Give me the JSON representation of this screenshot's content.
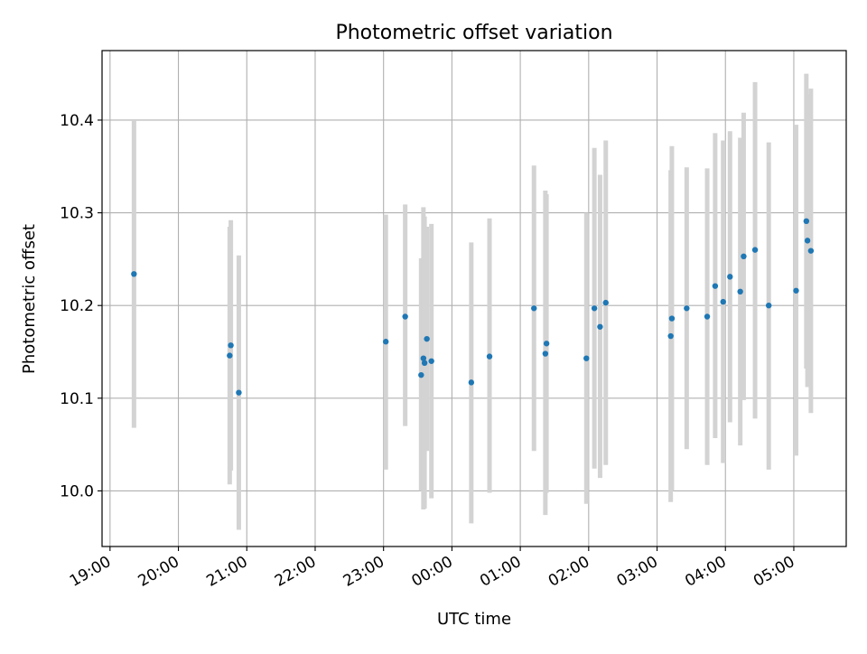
{
  "chart_data": {
    "type": "scatter",
    "title": "Photometric offset variation",
    "xlabel": "UTC time",
    "ylabel": "Photometric offset",
    "x_start": "18:53",
    "x_end": "05:46",
    "x_ticks": [
      "19:00",
      "20:00",
      "21:00",
      "22:00",
      "23:00",
      "00:00",
      "01:00",
      "02:00",
      "03:00",
      "04:00",
      "05:00"
    ],
    "ylim": [
      9.94,
      10.475
    ],
    "y_ticks": [
      10.0,
      10.1,
      10.2,
      10.3,
      10.4
    ],
    "y_tick_labels": [
      "10.0",
      "10.1",
      "10.2",
      "10.3",
      "10.4"
    ],
    "grid": true,
    "marker_color": "#1f77b4",
    "errorbar_color": "#d3d3d3",
    "series": [
      {
        "points": [
          {
            "x": "19:21",
            "y": 10.234,
            "ylow": 10.068,
            "yhigh": 10.4
          },
          {
            "x": "20:45",
            "y": 10.146,
            "ylow": 10.007,
            "yhigh": 10.285
          },
          {
            "x": "20:46",
            "y": 10.157,
            "ylow": 10.022,
            "yhigh": 10.292
          },
          {
            "x": "20:53",
            "y": 10.106,
            "ylow": 9.958,
            "yhigh": 10.254
          },
          {
            "x": "23:02",
            "y": 10.161,
            "ylow": 10.023,
            "yhigh": 10.298
          },
          {
            "x": "23:19",
            "y": 10.188,
            "ylow": 10.07,
            "yhigh": 10.309
          },
          {
            "x": "23:33",
            "y": 10.125,
            "ylow": 10.0,
            "yhigh": 10.251
          },
          {
            "x": "23:35",
            "y": 10.143,
            "ylow": 9.98,
            "yhigh": 10.306
          },
          {
            "x": "23:36",
            "y": 10.138,
            "ylow": 9.981,
            "yhigh": 10.296
          },
          {
            "x": "23:38",
            "y": 10.164,
            "ylow": 10.043,
            "yhigh": 10.285
          },
          {
            "x": "23:42",
            "y": 10.14,
            "ylow": 9.992,
            "yhigh": 10.288
          },
          {
            "x": "00:17",
            "y": 10.117,
            "ylow": 9.965,
            "yhigh": 10.268
          },
          {
            "x": "00:33",
            "y": 10.145,
            "ylow": 9.998,
            "yhigh": 10.294
          },
          {
            "x": "01:12",
            "y": 10.197,
            "ylow": 10.043,
            "yhigh": 10.351
          },
          {
            "x": "01:22",
            "y": 10.148,
            "ylow": 9.974,
            "yhigh": 10.324
          },
          {
            "x": "01:23",
            "y": 10.159,
            "ylow": 9.998,
            "yhigh": 10.32
          },
          {
            "x": "01:58",
            "y": 10.143,
            "ylow": 9.986,
            "yhigh": 10.3
          },
          {
            "x": "02:05",
            "y": 10.197,
            "ylow": 10.024,
            "yhigh": 10.37
          },
          {
            "x": "02:10",
            "y": 10.177,
            "ylow": 10.014,
            "yhigh": 10.341
          },
          {
            "x": "02:15",
            "y": 10.203,
            "ylow": 10.028,
            "yhigh": 10.378
          },
          {
            "x": "03:12",
            "y": 10.167,
            "ylow": 9.988,
            "yhigh": 10.346
          },
          {
            "x": "03:13",
            "y": 10.186,
            "ylow": 10.0,
            "yhigh": 10.372
          },
          {
            "x": "03:26",
            "y": 10.197,
            "ylow": 10.045,
            "yhigh": 10.349
          },
          {
            "x": "03:44",
            "y": 10.188,
            "ylow": 10.028,
            "yhigh": 10.348
          },
          {
            "x": "03:51",
            "y": 10.221,
            "ylow": 10.057,
            "yhigh": 10.386
          },
          {
            "x": "03:58",
            "y": 10.204,
            "ylow": 10.03,
            "yhigh": 10.378
          },
          {
            "x": "04:04",
            "y": 10.231,
            "ylow": 10.074,
            "yhigh": 10.388
          },
          {
            "x": "04:13",
            "y": 10.215,
            "ylow": 10.049,
            "yhigh": 10.381
          },
          {
            "x": "04:16",
            "y": 10.253,
            "ylow": 10.098,
            "yhigh": 10.408
          },
          {
            "x": "04:26",
            "y": 10.26,
            "ylow": 10.078,
            "yhigh": 10.441
          },
          {
            "x": "04:38",
            "y": 10.2,
            "ylow": 10.023,
            "yhigh": 10.376
          },
          {
            "x": "05:02",
            "y": 10.216,
            "ylow": 10.038,
            "yhigh": 10.395
          },
          {
            "x": "05:11",
            "y": 10.291,
            "ylow": 10.132,
            "yhigh": 10.45
          },
          {
            "x": "05:12",
            "y": 10.27,
            "ylow": 10.112,
            "yhigh": 10.428
          },
          {
            "x": "05:15",
            "y": 10.259,
            "ylow": 10.084,
            "yhigh": 10.434
          }
        ]
      }
    ]
  }
}
